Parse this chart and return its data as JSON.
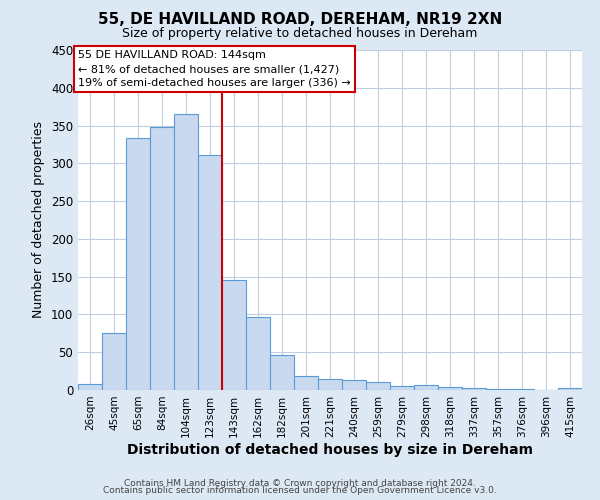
{
  "title": "55, DE HAVILLAND ROAD, DEREHAM, NR19 2XN",
  "subtitle": "Size of property relative to detached houses in Dereham",
  "xlabel": "Distribution of detached houses by size in Dereham",
  "ylabel": "Number of detached properties",
  "bin_labels": [
    "26sqm",
    "45sqm",
    "65sqm",
    "84sqm",
    "104sqm",
    "123sqm",
    "143sqm",
    "162sqm",
    "182sqm",
    "201sqm",
    "221sqm",
    "240sqm",
    "259sqm",
    "279sqm",
    "298sqm",
    "318sqm",
    "337sqm",
    "357sqm",
    "376sqm",
    "396sqm",
    "415sqm"
  ],
  "bar_heights": [
    8,
    76,
    333,
    348,
    365,
    311,
    145,
    97,
    46,
    18,
    15,
    13,
    10,
    5,
    6,
    4,
    2,
    1,
    1,
    0,
    2
  ],
  "bar_color": "#c9d9f0",
  "bar_edge_color": "#5b9bd5",
  "vline_index": 6,
  "annotation_title": "55 DE HAVILLAND ROAD: 144sqm",
  "annotation_line1": "← 81% of detached houses are smaller (1,427)",
  "annotation_line2": "19% of semi-detached houses are larger (336) →",
  "annotation_box_color": "#ffffff",
  "annotation_box_edge_color": "#cc0000",
  "vline_color": "#cc0000",
  "ylim": [
    0,
    450
  ],
  "yticks": [
    0,
    50,
    100,
    150,
    200,
    250,
    300,
    350,
    400,
    450
  ],
  "footer1": "Contains HM Land Registry data © Crown copyright and database right 2024.",
  "footer2": "Contains public sector information licensed under the Open Government Licence v3.0.",
  "bg_color": "#dde8f5",
  "plot_bg_color": "#ffffff",
  "grid_color": "#c0cedf"
}
